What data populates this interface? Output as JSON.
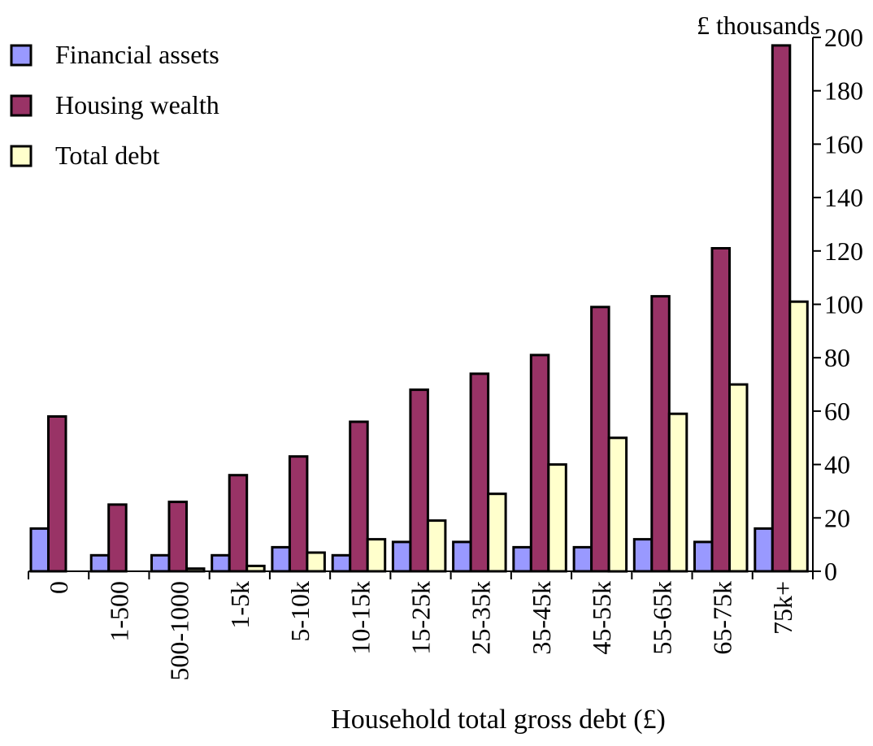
{
  "chart_data": {
    "type": "bar",
    "title": "",
    "unit_label": "£ thousands",
    "xlabel": "Household total gross debt (£)",
    "ylabel": "",
    "categories": [
      "0",
      "1-500",
      "500-1000",
      "1-5k",
      "5-10k",
      "10-15k",
      "15-25k",
      "25-35k",
      "35-45k",
      "45-55k",
      "55-65k",
      "65-75k",
      "75k+"
    ],
    "series": [
      {
        "name": "Financial assets",
        "color": "#9999ff",
        "values": [
          16,
          6,
          6,
          6,
          9,
          6,
          11,
          11,
          9,
          9,
          12,
          11,
          16
        ]
      },
      {
        "name": "Housing wealth",
        "color": "#993366",
        "values": [
          58,
          25,
          26,
          36,
          43,
          56,
          68,
          74,
          81,
          99,
          103,
          121,
          197
        ]
      },
      {
        "name": "Total debt",
        "color": "#ffffcc",
        "values": [
          0,
          0,
          1,
          2,
          7,
          12,
          19,
          29,
          40,
          50,
          59,
          70,
          101
        ]
      }
    ],
    "ylim": [
      0,
      200
    ],
    "yticks": [
      "0",
      "20",
      "40",
      "60",
      "80",
      "100",
      "120",
      "140",
      "160",
      "180",
      "200"
    ],
    "y_axis_position": "right",
    "x_tick_label_rotation": "vertical",
    "grid": false,
    "legend_position": "top-left"
  }
}
